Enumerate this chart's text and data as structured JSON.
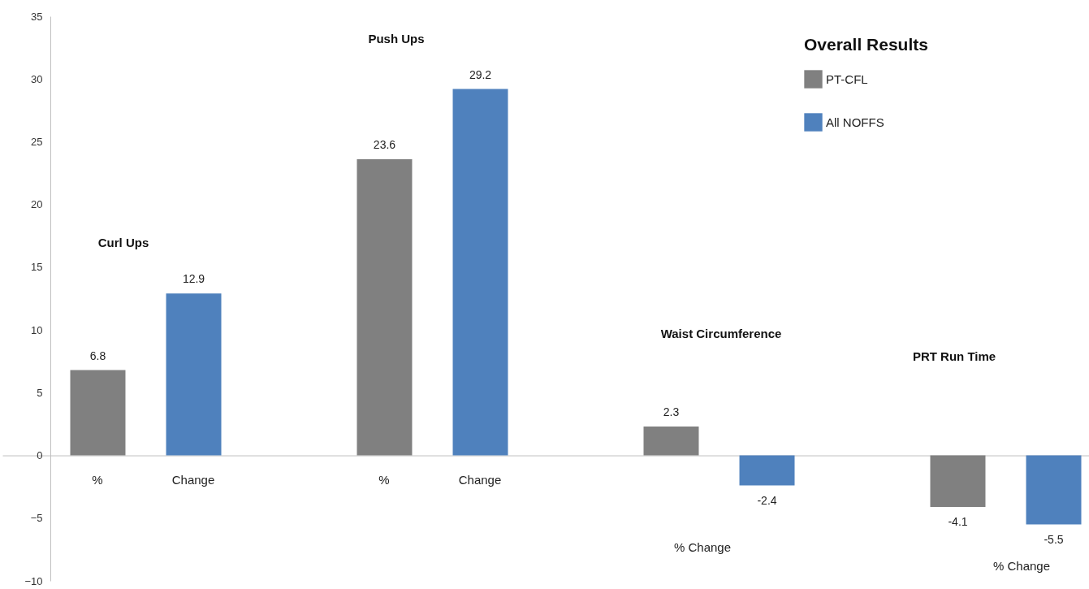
{
  "chart_data": {
    "type": "bar",
    "legend_title": "Overall Results",
    "categories": [
      "Curl Ups",
      "Push Ups",
      "Waist Circumference",
      "PRT Run Time"
    ],
    "series": [
      {
        "name": "PT-CFL",
        "color": "#808080",
        "values": [
          6.8,
          23.6,
          2.3,
          -4.1
        ]
      },
      {
        "name": "All NOFFS",
        "color": "#4f81bd",
        "values": [
          12.9,
          29.2,
          -2.4,
          -5.5
        ]
      }
    ],
    "ylim": [
      -10,
      35
    ],
    "yticks": [
      -10,
      -5,
      0,
      5,
      10,
      15,
      20,
      25,
      30,
      35
    ],
    "data_labels": true,
    "legend": "top right",
    "annotations": [
      "%",
      "Change",
      "%",
      "Change",
      "% Change",
      "% Change"
    ]
  }
}
